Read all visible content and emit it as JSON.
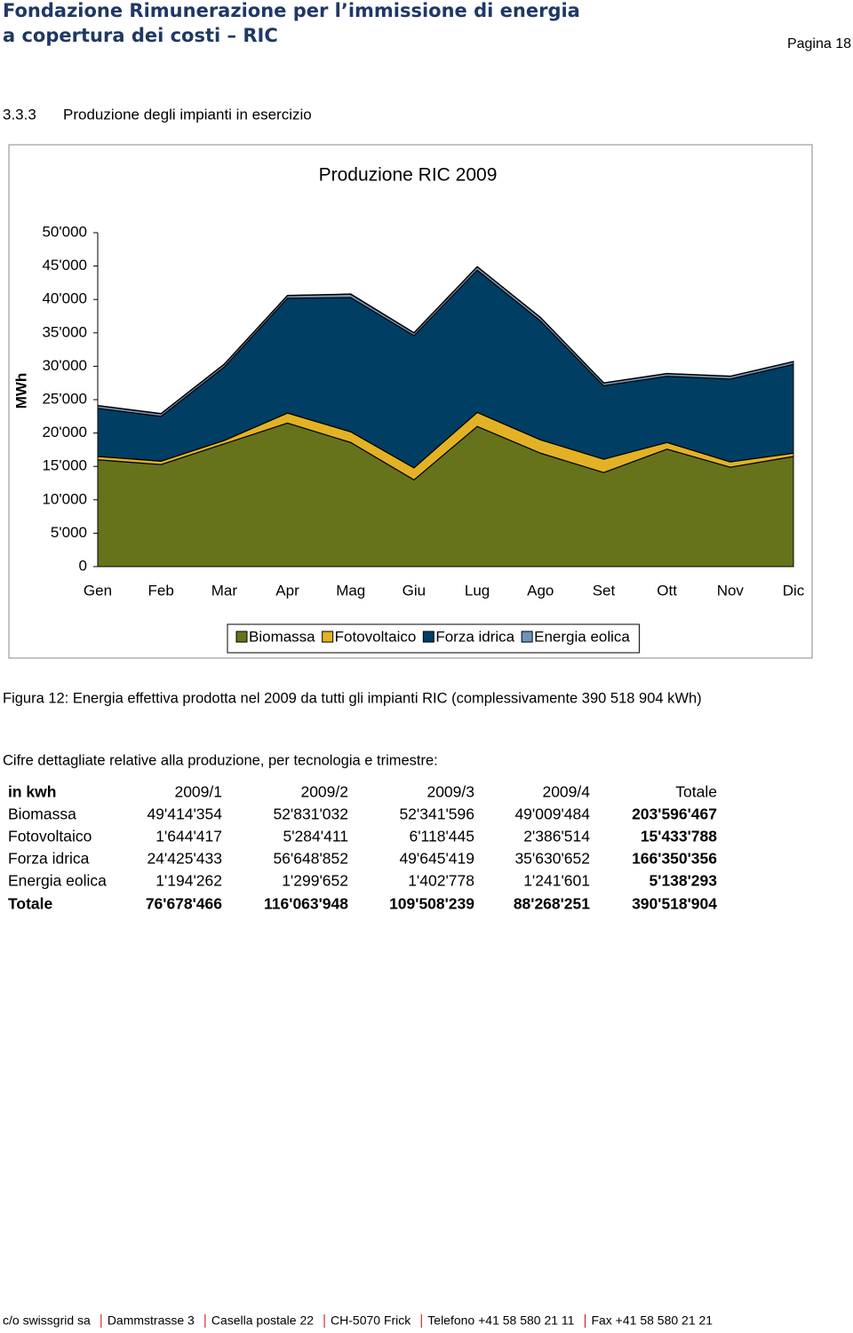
{
  "header": {
    "title_lines": [
      "Fondazione Rimunerazione per l’immissione di energia",
      "a copertura dei costi – RIC"
    ],
    "page": "Pagina 18"
  },
  "section": {
    "number": "3.3.3",
    "title": "Produzione degli impianti in esercizio"
  },
  "chart_data": {
    "type": "area",
    "stacked": true,
    "title": "Produzione RIC 2009",
    "y_label": "MWh",
    "categories": [
      "Gen",
      "Feb",
      "Mar",
      "Apr",
      "Mag",
      "Giu",
      "Lug",
      "Ago",
      "Set",
      "Ott",
      "Nov",
      "Dic"
    ],
    "series": [
      {
        "name": "Biomassa",
        "color": "#66731a",
        "values": [
          16000,
          15300,
          18400,
          21500,
          18600,
          13000,
          21000,
          17000,
          14100,
          17600,
          14900,
          16500
        ]
      },
      {
        "name": "Fotovoltaico",
        "color": "#e3b224",
        "values": [
          500,
          500,
          500,
          1500,
          1600,
          1800,
          2100,
          2000,
          2000,
          1000,
          800,
          500
        ]
      },
      {
        "name": "Forza idrica",
        "color": "#003e64",
        "values": [
          7200,
          6700,
          11000,
          17200,
          20100,
          19800,
          21300,
          17800,
          11000,
          9900,
          12400,
          13300
        ]
      },
      {
        "name": "Energia eolica",
        "color": "#6e95b9",
        "values": [
          400,
          400,
          400,
          400,
          500,
          400,
          500,
          500,
          400,
          400,
          400,
          400
        ]
      }
    ],
    "ylim": [
      0,
      50000
    ],
    "yticks": [
      0,
      {
        "value": 5000,
        "label": "5'000"
      },
      {
        "value": 10000,
        "label": "10'000"
      },
      {
        "value": 15000,
        "label": "15'000"
      },
      {
        "value": 20000,
        "label": "20'000"
      },
      {
        "value": 25000,
        "label": "25'000"
      },
      {
        "value": 30000,
        "label": "30'000"
      },
      {
        "value": 35000,
        "label": "35'000"
      },
      {
        "value": 40000,
        "label": "40'000"
      },
      {
        "value": 45000,
        "label": "45'000"
      },
      {
        "value": 50000,
        "label": "50'000"
      }
    ],
    "grid": false,
    "legend": "bottom"
  },
  "caption": "Figura 12: Energia effettiva prodotta nel 2009 da tutti gli impianti RIC (complessivamente 390 518 904 kWh)",
  "intro": "Cifre dettagliate relative alla produzione, per tecnologia e trimestre:",
  "table": {
    "header": [
      "in kwh",
      "2009/1",
      "2009/2",
      "2009/3",
      "2009/4",
      "Totale"
    ],
    "rows": [
      [
        "Biomassa",
        "49'414'354",
        "52'831'032",
        "52'341'596",
        "49'009'484",
        "203'596'467"
      ],
      [
        "Fotovoltaico",
        "1'644'417",
        "5'284'411",
        "6'118'445",
        "2'386'514",
        "15'433'788"
      ],
      [
        "Forza idrica",
        "24'425'433",
        "56'648'852",
        "49'645'419",
        "35'630'652",
        "166'350'356"
      ],
      [
        "Energia eolica",
        "1'194'262",
        "1'299'652",
        "1'402'778",
        "1'241'601",
        "5'138'293"
      ],
      [
        "Totale",
        "76'678'466",
        "116'063'948",
        "109'508'239",
        "88'268'251",
        "390'518'904"
      ]
    ]
  },
  "footer": [
    "c/o swissgrid sa",
    "Dammstrasse 3",
    "Casella postale 22",
    "CH-5070 Frick",
    "Telefono +41 58 580 21 11",
    "Fax +41 58 580 21 21"
  ]
}
